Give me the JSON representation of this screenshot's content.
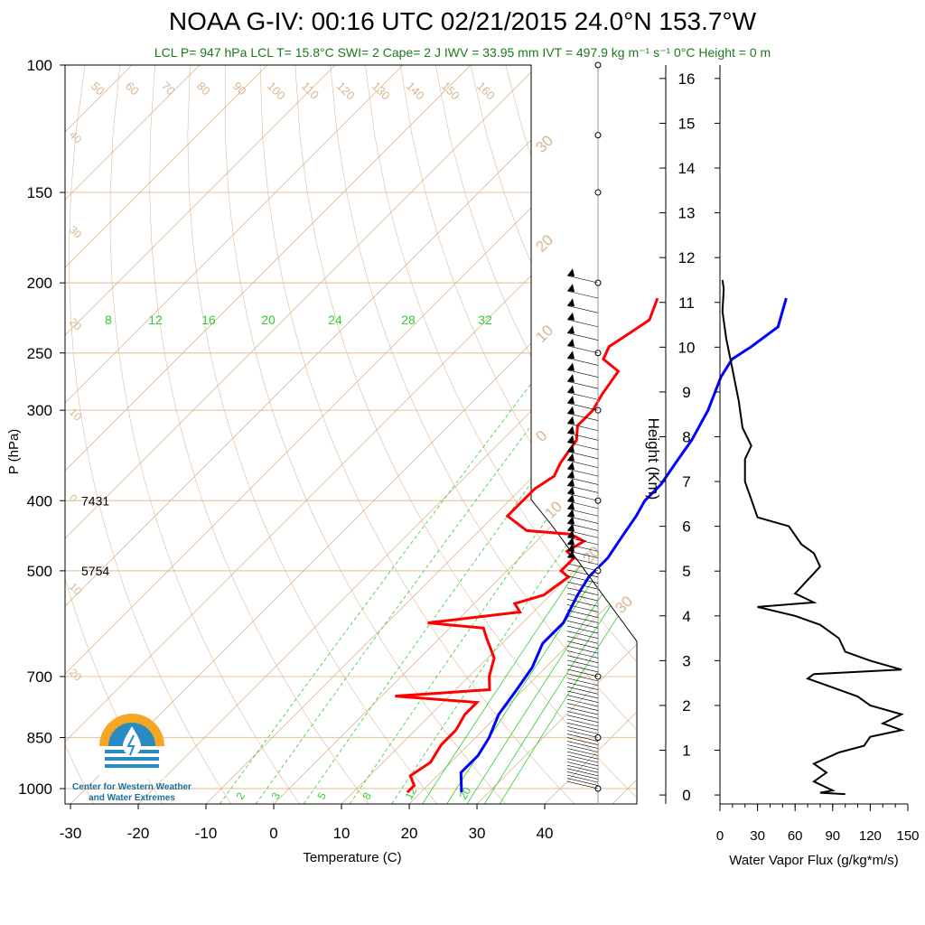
{
  "title": "NOAA G-IV: 00:16 UTC 02/21/2015  24.0°N 153.7°W",
  "subtitle": "LCL P= 947 hPa  LCL T= 15.8°C  SWI= 2  Cape= 2 J  IWV = 33.95 mm  IVT = 497.9 kg m⁻¹ s⁻¹  0°C Height = 0 m",
  "logo": {
    "line1": "Center for Western Weather",
    "line2": "and Water Extremes",
    "accent": "#f5a623",
    "blue": "#2a8bc4"
  },
  "colors": {
    "temperature": "#ff0000",
    "dewpoint": "#0000ff",
    "isotherm": "#d9b48f",
    "mixing_ratio": "#33cc33",
    "flux": "#000000"
  },
  "chart_data": [
    {
      "type": "line",
      "name": "skewt",
      "xlabel": "Temperature (C)",
      "ylabel": "P (hPa)",
      "x_ticks": [
        -30,
        -20,
        -10,
        0,
        10,
        20,
        30,
        40
      ],
      "y_ticks": [
        100,
        150,
        200,
        250,
        300,
        400,
        500,
        700,
        850,
        1000
      ],
      "y_scale": "log",
      "xlim": [
        -34,
        52
      ],
      "ylim": [
        1050,
        100
      ],
      "height_labels": [
        {
          "p": 400,
          "text": "7431"
        },
        {
          "p": 500,
          "text": "5754"
        }
      ],
      "isotherm_labels": [
        "50",
        "60",
        "70",
        "80",
        "90",
        "100",
        "110",
        "120",
        "130",
        "140",
        "150",
        "160",
        "40",
        "30",
        "20",
        "10",
        "0",
        "10",
        "20",
        "30",
        "20",
        "10",
        "0",
        "10",
        "20",
        "30"
      ],
      "mixing_ratio_labels": [
        "8",
        "12",
        "16",
        "20",
        "24",
        "28",
        "32",
        "2",
        "3",
        "5",
        "8",
        "12",
        "20"
      ],
      "series": [
        {
          "name": "temperature",
          "points": [
            [
              -18,
              210
            ],
            [
              -16,
              225
            ],
            [
              -17,
              235
            ],
            [
              -18,
              245
            ],
            [
              -17,
              255
            ],
            [
              -13,
              265
            ],
            [
              -12,
              285
            ],
            [
              -11,
              300
            ],
            [
              -11,
              315
            ],
            [
              -9,
              330
            ],
            [
              -8,
              355
            ],
            [
              -7,
              370
            ],
            [
              -8,
              385
            ],
            [
              -8,
              405
            ],
            [
              -8,
              420
            ],
            [
              -3,
              440
            ],
            [
              4,
              445
            ],
            [
              7,
              455
            ],
            [
              6,
              470
            ],
            [
              8,
              480
            ],
            [
              8,
              500
            ],
            [
              10,
              510
            ],
            [
              9,
              540
            ],
            [
              6,
              555
            ],
            [
              8,
              570
            ],
            [
              -4,
              590
            ],
            [
              5,
              600
            ],
            [
              7,
              620
            ],
            [
              11,
              660
            ],
            [
              13,
              700
            ],
            [
              15,
              730
            ],
            [
              2,
              745
            ],
            [
              15,
              760
            ],
            [
              15,
              790
            ],
            [
              16,
              830
            ],
            [
              16,
              870
            ],
            [
              17,
              920
            ],
            [
              16,
              960
            ],
            [
              18,
              990
            ],
            [
              18,
              1012
            ]
          ]
        },
        {
          "name": "dewpoint",
          "points": [
            [
              1,
              210
            ],
            [
              4,
              230
            ],
            [
              3,
              245
            ],
            [
              2,
              255
            ],
            [
              3,
              270
            ],
            [
              6,
              300
            ],
            [
              8,
              330
            ],
            [
              9,
              355
            ],
            [
              10,
              380
            ],
            [
              10,
              400
            ],
            [
              11,
              420
            ],
            [
              12,
              450
            ],
            [
              13,
              480
            ],
            [
              13,
              510
            ],
            [
              14,
              540
            ],
            [
              16,
              590
            ],
            [
              16,
              630
            ],
            [
              18,
              680
            ],
            [
              19,
              730
            ],
            [
              20,
              790
            ],
            [
              22,
              850
            ],
            [
              23,
              900
            ],
            [
              23,
              950
            ],
            [
              26,
              1012
            ]
          ]
        }
      ]
    },
    {
      "type": "line",
      "name": "water_vapor_flux",
      "xlabel": "Water Vapor Flux (g/kg*m/s)",
      "ylabel": "Height (Km)",
      "x_ticks": [
        0,
        30,
        60,
        90,
        120,
        150
      ],
      "y_ticks": [
        0,
        1,
        2,
        3,
        4,
        5,
        6,
        7,
        8,
        9,
        10,
        11,
        12,
        13,
        14,
        15,
        16
      ],
      "xlim": [
        0,
        150
      ],
      "ylim": [
        -0.2,
        16.3
      ],
      "series": [
        {
          "name": "flux",
          "points": [
            [
              100,
              0.02
            ],
            [
              80,
              0.05
            ],
            [
              90,
              0.1
            ],
            [
              75,
              0.3
            ],
            [
              85,
              0.5
            ],
            [
              75,
              0.7
            ],
            [
              95,
              0.95
            ],
            [
              115,
              1.1
            ],
            [
              120,
              1.3
            ],
            [
              145,
              1.45
            ],
            [
              130,
              1.6
            ],
            [
              145,
              1.8
            ],
            [
              120,
              2.0
            ],
            [
              110,
              2.2
            ],
            [
              90,
              2.4
            ],
            [
              70,
              2.6
            ],
            [
              75,
              2.7
            ],
            [
              145,
              2.8
            ],
            [
              120,
              3.0
            ],
            [
              100,
              3.2
            ],
            [
              95,
              3.5
            ],
            [
              80,
              3.8
            ],
            [
              60,
              4.0
            ],
            [
              30,
              4.2
            ],
            [
              75,
              4.3
            ],
            [
              60,
              4.5
            ],
            [
              70,
              4.8
            ],
            [
              80,
              5.1
            ],
            [
              75,
              5.4
            ],
            [
              65,
              5.6
            ],
            [
              55,
              6.0
            ],
            [
              30,
              6.2
            ],
            [
              25,
              6.6
            ],
            [
              20,
              7.0
            ],
            [
              20,
              7.5
            ],
            [
              25,
              7.8
            ],
            [
              18,
              8.2
            ],
            [
              15,
              8.8
            ],
            [
              10,
              9.5
            ],
            [
              5,
              10.2
            ],
            [
              2,
              10.8
            ],
            [
              3,
              11.3
            ],
            [
              2,
              11.5
            ]
          ]
        }
      ]
    }
  ]
}
